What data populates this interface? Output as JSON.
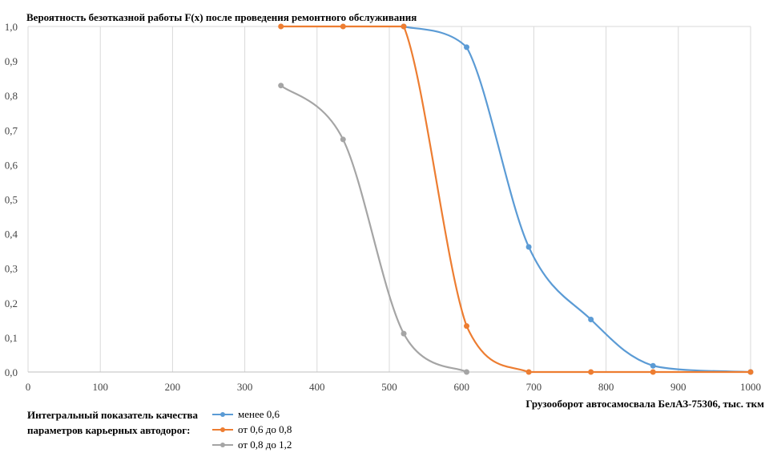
{
  "chart_data": {
    "type": "line",
    "title": "Вероятность безотказной работы F(x) после проведения ремонтного обслуживания",
    "xlabel": "Грузооборот  автосамосвала БелАЗ-75306, тыс. ткм",
    "ylabel": "",
    "xlim": [
      0,
      1000
    ],
    "ylim": [
      0,
      1
    ],
    "x_ticks": [
      "0",
      "100",
      "200",
      "300",
      "400",
      "500",
      "600",
      "700",
      "800",
      "900",
      "1000"
    ],
    "y_ticks": [
      "0,0",
      "0,1",
      "0,2",
      "0,3",
      "0,4",
      "0,5",
      "0,6",
      "0,7",
      "0,8",
      "0,9",
      "1,0"
    ],
    "grid": "vertical",
    "legend_title": "Интегральный показатель качества параметров карьерных автодорог:",
    "legend_position": "bottom",
    "series": [
      {
        "name": "менее 0,6",
        "color": "#5B9BD5",
        "points": [
          [
            520,
            1.0
          ],
          [
            607,
            0.94
          ],
          [
            693,
            0.362
          ],
          [
            779,
            0.152
          ],
          [
            865,
            0.018
          ],
          [
            1000,
            0.0
          ]
        ]
      },
      {
        "name": "от 0,6 до 0,8",
        "color": "#ED7D31",
        "points": [
          [
            350,
            1.0
          ],
          [
            436,
            1.0
          ],
          [
            520,
            1.0
          ],
          [
            607,
            0.133
          ],
          [
            693,
            0.0
          ],
          [
            779,
            0.0
          ],
          [
            865,
            0.0
          ],
          [
            1000,
            0.0
          ]
        ]
      },
      {
        "name": "от 0,8 до 1,2",
        "color": "#A5A5A5",
        "points": [
          [
            350,
            0.829
          ],
          [
            436,
            0.673
          ],
          [
            520,
            0.111
          ],
          [
            607,
            0.0
          ]
        ]
      }
    ]
  }
}
